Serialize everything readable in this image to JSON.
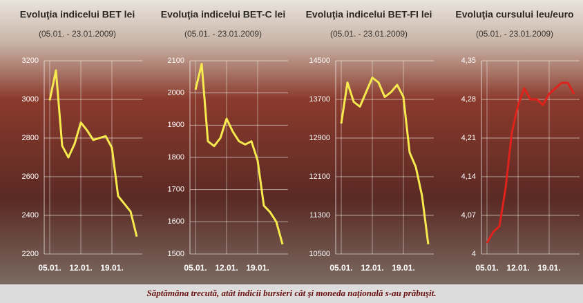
{
  "chart_data": [
    {
      "type": "line",
      "title": "Evoluţia indicelui BET lei",
      "subtitle": "(05.01. - 23.01.2009)",
      "categories": [
        "05.01.",
        null,
        null,
        null,
        null,
        "12.01.",
        null,
        null,
        null,
        null,
        "19.01.",
        null,
        null,
        null,
        null
      ],
      "values": [
        2995,
        3150,
        2760,
        2700,
        2770,
        2880,
        2840,
        2790,
        2800,
        2810,
        2750,
        2500,
        2460,
        2420,
        2290
      ],
      "color": "#f6ea4e",
      "ylim": [
        2200,
        3200
      ],
      "yticks": [
        2200,
        2400,
        2600,
        2800,
        3000,
        3200
      ],
      "grid": true
    },
    {
      "type": "line",
      "title": "Evoluţia indicelui BET-C lei",
      "subtitle": "(05.01. - 23.01.2009)",
      "categories": [
        "05.01.",
        null,
        null,
        null,
        null,
        "12.01.",
        null,
        null,
        null,
        null,
        "19.01.",
        null,
        null,
        null,
        null
      ],
      "values": [
        2010,
        2090,
        1850,
        1835,
        1860,
        1920,
        1880,
        1850,
        1840,
        1850,
        1790,
        1650,
        1630,
        1600,
        1530
      ],
      "color": "#f6ea4e",
      "ylim": [
        1500,
        2100
      ],
      "yticks": [
        1500,
        1600,
        1700,
        1800,
        1900,
        2000,
        2100
      ],
      "grid": true
    },
    {
      "type": "line",
      "title": "Evoluţia indicelui BET-FI lei",
      "subtitle": "(05.01. - 23.01.2009)",
      "categories": [
        "05.01.",
        null,
        null,
        null,
        null,
        "12.01.",
        null,
        null,
        null,
        null,
        "19.01.",
        null,
        null,
        null,
        null
      ],
      "values": [
        13200,
        14050,
        13650,
        13550,
        13850,
        14150,
        14050,
        13750,
        13850,
        14000,
        13750,
        12600,
        12300,
        11700,
        10700
      ],
      "color": "#f6ea4e",
      "ylim": [
        10500,
        14500
      ],
      "yticks": [
        10500,
        11300,
        12100,
        12900,
        13700,
        14500
      ],
      "grid": true
    },
    {
      "type": "line",
      "title": "Evoluţia cursului leu/euro",
      "subtitle": "(05.01. - 23.01.2009)",
      "categories": [
        "05.01.",
        null,
        null,
        null,
        null,
        "12.01.",
        null,
        null,
        null,
        null,
        "19.01.",
        null,
        null,
        null,
        null
      ],
      "values": [
        4.02,
        4.04,
        4.05,
        4.12,
        4.22,
        4.27,
        4.3,
        4.28,
        4.28,
        4.27,
        4.29,
        4.3,
        4.31,
        4.31,
        4.29
      ],
      "color": "#e0221c",
      "ylim": [
        4,
        4.35
      ],
      "yticks": [
        4,
        {
          "value": 4.07,
          "label": "4,07"
        },
        {
          "value": 4.14,
          "label": "4,14"
        },
        {
          "value": 4.21,
          "label": "4,21"
        },
        {
          "value": 4.28,
          "label": "4,28"
        },
        {
          "value": 4.35,
          "label": "4,35"
        }
      ],
      "grid": true
    }
  ],
  "caption": "Săptămâna trecută, atât indicii bursieri cât şi moneda naţională s-au prăbuşit."
}
